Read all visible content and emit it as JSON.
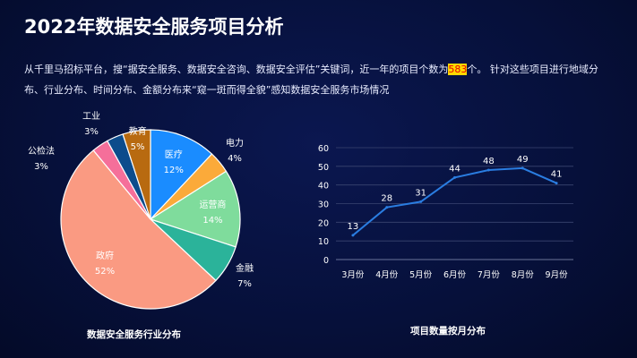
{
  "title": "2022年数据安全服务项目分析",
  "desc_before": "从千里马招标平台，搜“据安全服务、数据安全咨询、数据安全评估”关键词，近一年的项目个数为",
  "desc_highlight": "583",
  "desc_after": "个。 针对这些项目进行地域分布、行业分布、时间分布、金额分布来“窥一斑而得全貌”感知数据安全服务市场情况",
  "chart_data": [
    {
      "type": "pie",
      "title": "数据安全服务行业分布",
      "slices": [
        {
          "label": "医疗",
          "value": 12,
          "color": "#1a8cff"
        },
        {
          "label": "电力",
          "value": 4,
          "color": "#fbaa3a"
        },
        {
          "label": "运营商",
          "value": 14,
          "color": "#7fdc9c"
        },
        {
          "label": "金融",
          "value": 7,
          "color": "#2bb39a"
        },
        {
          "label": "政府",
          "value": 52,
          "color": "#fa9a82"
        },
        {
          "label": "公检法",
          "value": 3,
          "color": "#f56f9a"
        },
        {
          "label": "工业",
          "value": 3,
          "color": "#0c4c8c"
        },
        {
          "label": "教育",
          "value": 5,
          "color": "#b86a10"
        }
      ]
    },
    {
      "type": "line",
      "title": "项目数量按月分布",
      "categories": [
        "3月份",
        "4月份",
        "5月份",
        "6月份",
        "7月份",
        "8月份",
        "9月份"
      ],
      "values": [
        13,
        28,
        31,
        44,
        48,
        49,
        41
      ],
      "ylim": [
        0,
        60
      ],
      "yticks": [
        0,
        10,
        20,
        30,
        40,
        50,
        60
      ],
      "grid": true,
      "color": "#2a7de1"
    }
  ]
}
